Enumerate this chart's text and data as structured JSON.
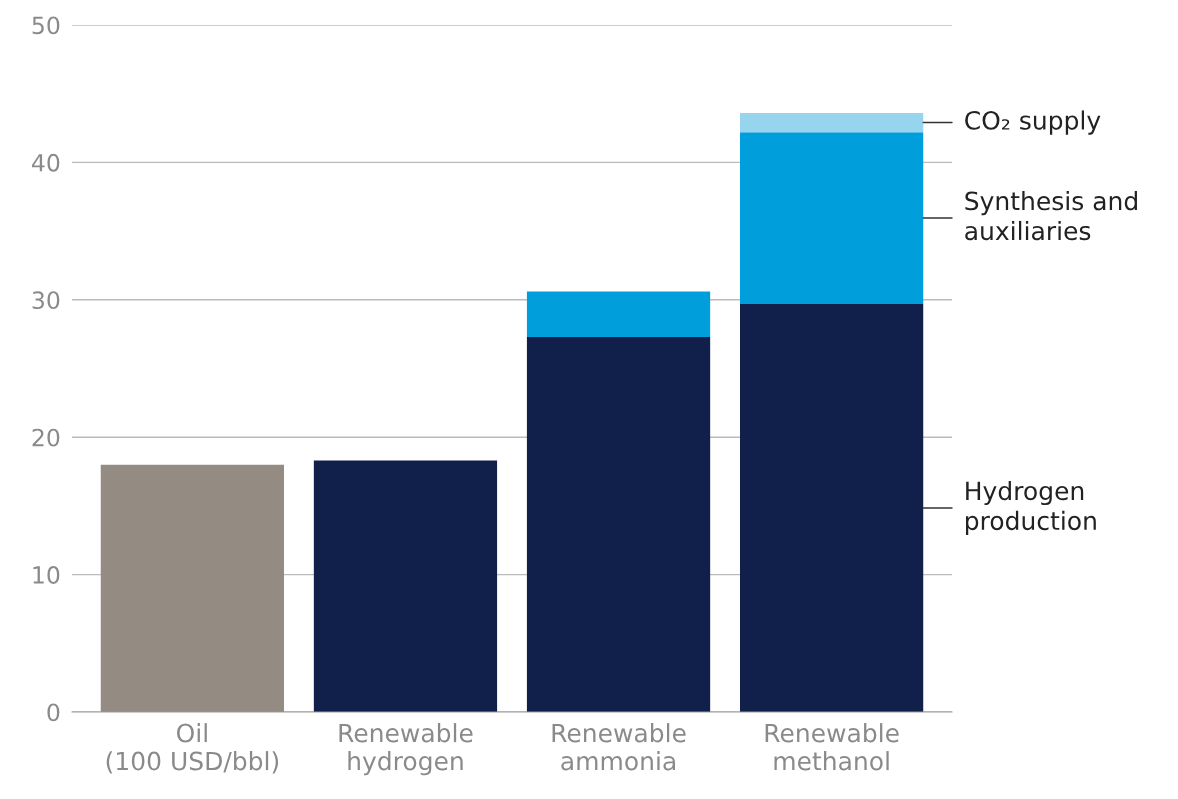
{
  "chart_data": {
    "type": "bar",
    "stacked": true,
    "categories": [
      "Oil\n(100 USD/bbl)",
      "Renewable\nhydrogen",
      "Renewable\nammonia",
      "Renewable\nmethanol"
    ],
    "series": [
      {
        "color": "#948b82",
        "values": [
          18.0,
          null,
          null,
          null
        ]
      },
      {
        "name": "Hydrogen\nproduction",
        "color": "#10204b",
        "values": [
          null,
          18.3,
          27.3,
          29.7
        ]
      },
      {
        "name": "Synthesis and\nauxiliaries",
        "color": "#009fdb",
        "values": [
          null,
          null,
          3.3,
          12.5
        ]
      },
      {
        "name": "CO₂ supply",
        "color": "#97d4ee",
        "values": [
          null,
          null,
          null,
          1.4
        ]
      }
    ],
    "ylim": [
      0,
      50
    ],
    "yticks": [
      0,
      10,
      20,
      30,
      40,
      50
    ],
    "grid": "y",
    "legend": "right"
  }
}
